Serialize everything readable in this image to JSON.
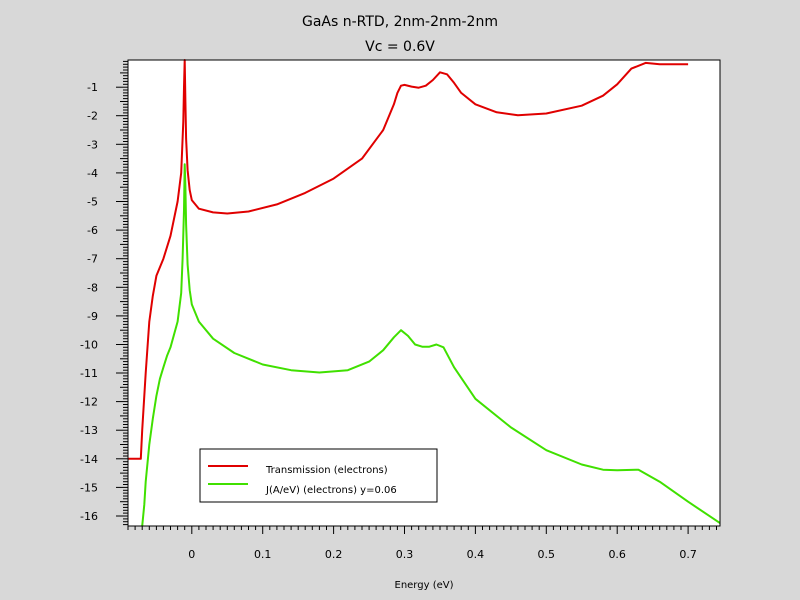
{
  "chart_data": {
    "type": "line",
    "title": "GaAs n-RTD, 2nm-2nm-2nm",
    "subtitle": "Vc = 0.6V",
    "xlabel": "Energy (eV)",
    "ylabel": "",
    "xlim": [
      -0.09,
      0.745
    ],
    "ylim": [
      -16.35,
      -0.05
    ],
    "x_ticks": [
      0,
      0.1,
      0.2,
      0.3,
      0.4,
      0.5,
      0.6,
      0.7
    ],
    "x_tick_labels": [
      "0",
      "0.1",
      "0.2",
      "0.3",
      "0.4",
      "0.5",
      "0.6",
      "0.7"
    ],
    "y_ticks": [
      -1,
      -2,
      -3,
      -4,
      -5,
      -6,
      -7,
      -8,
      -9,
      -10,
      -11,
      -12,
      -13,
      -14,
      -15,
      -16
    ],
    "y_tick_labels": [
      "-1",
      "-2",
      "-3",
      "-4",
      "-5",
      "-6",
      "-7",
      "-8",
      "-9",
      "-10",
      "-11",
      "-12",
      "-13",
      "-14",
      "-15",
      "-16"
    ],
    "grid": false,
    "legend_position": "bottom-left",
    "series": [
      {
        "name": "Transmission (electrons)",
        "color": "#e00000",
        "x": [
          -0.09,
          -0.072,
          -0.07,
          -0.065,
          -0.06,
          -0.055,
          -0.05,
          -0.04,
          -0.03,
          -0.02,
          -0.015,
          -0.012,
          -0.011,
          -0.01,
          -0.009,
          -0.008,
          -0.006,
          -0.003,
          0,
          0.01,
          0.03,
          0.05,
          0.08,
          0.12,
          0.16,
          0.2,
          0.24,
          0.27,
          0.285,
          0.29,
          0.295,
          0.3,
          0.31,
          0.32,
          0.33,
          0.34,
          0.35,
          0.36,
          0.37,
          0.38,
          0.4,
          0.43,
          0.46,
          0.5,
          0.55,
          0.58,
          0.6,
          0.62,
          0.64,
          0.66,
          0.7
        ],
        "y": [
          -14.0,
          -14.0,
          -13.0,
          -11.0,
          -9.2,
          -8.3,
          -7.6,
          -7.0,
          -6.2,
          -5.0,
          -4.0,
          -2.2,
          -1.0,
          -0.05,
          -1.5,
          -2.8,
          -3.9,
          -4.6,
          -4.95,
          -5.25,
          -5.38,
          -5.42,
          -5.35,
          -5.1,
          -4.7,
          -4.2,
          -3.5,
          -2.5,
          -1.6,
          -1.2,
          -0.95,
          -0.92,
          -0.98,
          -1.02,
          -0.95,
          -0.75,
          -0.48,
          -0.55,
          -0.85,
          -1.2,
          -1.6,
          -1.88,
          -1.98,
          -1.92,
          -1.65,
          -1.3,
          -0.9,
          -0.35,
          -0.15,
          -0.2,
          -0.2
        ]
      },
      {
        "name": "J(A/eV) (electrons) y=0.06",
        "color": "#40e000",
        "x": [
          -0.07,
          -0.067,
          -0.065,
          -0.06,
          -0.055,
          -0.05,
          -0.045,
          -0.04,
          -0.035,
          -0.03,
          -0.02,
          -0.015,
          -0.013,
          -0.011,
          -0.01,
          -0.009,
          -0.008,
          -0.006,
          -0.003,
          0,
          0.01,
          0.03,
          0.06,
          0.1,
          0.14,
          0.18,
          0.22,
          0.25,
          0.27,
          0.285,
          0.295,
          0.305,
          0.315,
          0.325,
          0.335,
          0.345,
          0.355,
          0.37,
          0.4,
          0.45,
          0.5,
          0.55,
          0.58,
          0.6,
          0.63,
          0.66,
          0.7,
          0.745
        ],
        "y": [
          -16.35,
          -15.6,
          -14.8,
          -13.5,
          -12.6,
          -11.8,
          -11.2,
          -10.8,
          -10.4,
          -10.1,
          -9.2,
          -8.2,
          -7.0,
          -5.3,
          -3.7,
          -4.5,
          -5.8,
          -7.2,
          -8.1,
          -8.6,
          -9.2,
          -9.8,
          -10.3,
          -10.7,
          -10.9,
          -10.98,
          -10.9,
          -10.6,
          -10.2,
          -9.75,
          -9.5,
          -9.7,
          -10.0,
          -10.08,
          -10.08,
          -10.0,
          -10.1,
          -10.8,
          -11.9,
          -12.9,
          -13.7,
          -14.2,
          -14.38,
          -14.4,
          -14.38,
          -14.8,
          -15.5,
          -16.25
        ]
      }
    ]
  }
}
